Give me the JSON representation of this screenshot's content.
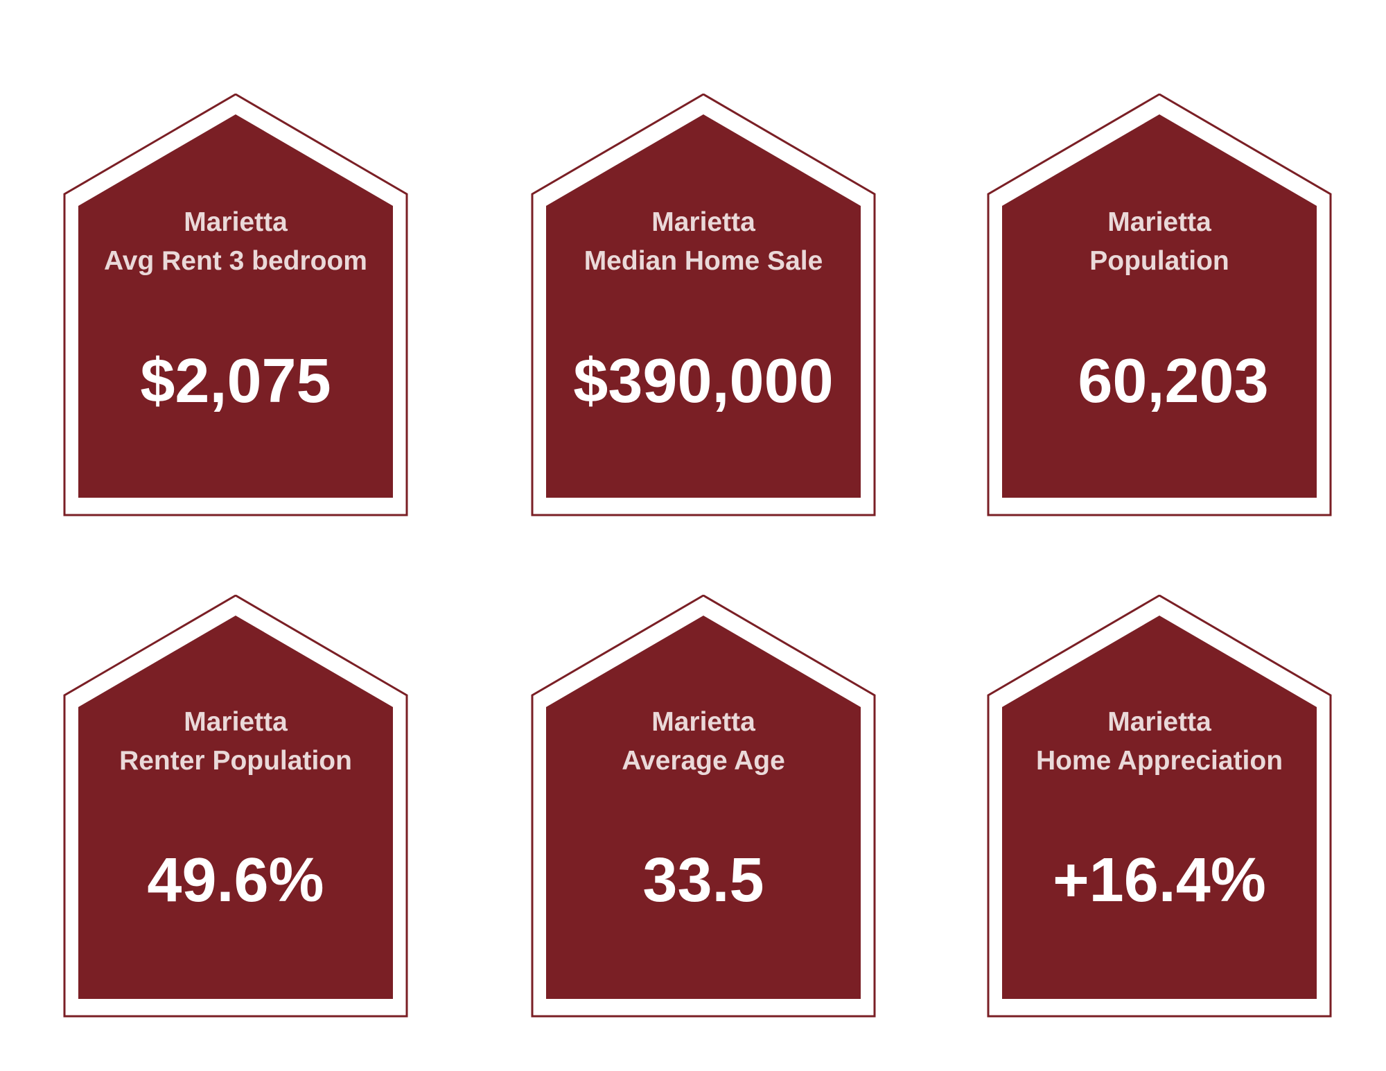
{
  "colors": {
    "house_fill": "#7a1f25",
    "house_outline": "#7a1f25",
    "label_text": "#ead9d9",
    "value_text": "#ffffff",
    "background": "#ffffff"
  },
  "cards": [
    {
      "city": "Marietta",
      "metric": "Avg Rent 3 bedroom",
      "value": "$2,075",
      "icon": "house-shape"
    },
    {
      "city": "Marietta",
      "metric": "Median Home Sale",
      "value": "$390,000",
      "icon": "house-shape"
    },
    {
      "city": "Marietta",
      "metric": "Population",
      "value": "60,203",
      "icon": "house-shape"
    },
    {
      "city": "Marietta",
      "metric": "Renter Population",
      "value": "49.6%",
      "icon": "house-shape"
    },
    {
      "city": "Marietta",
      "metric": "Average Age",
      "value": "33.5",
      "icon": "house-shape"
    },
    {
      "city": "Marietta",
      "metric": "Home Appreciation",
      "value": "+16.4%",
      "icon": "house-shape"
    }
  ]
}
